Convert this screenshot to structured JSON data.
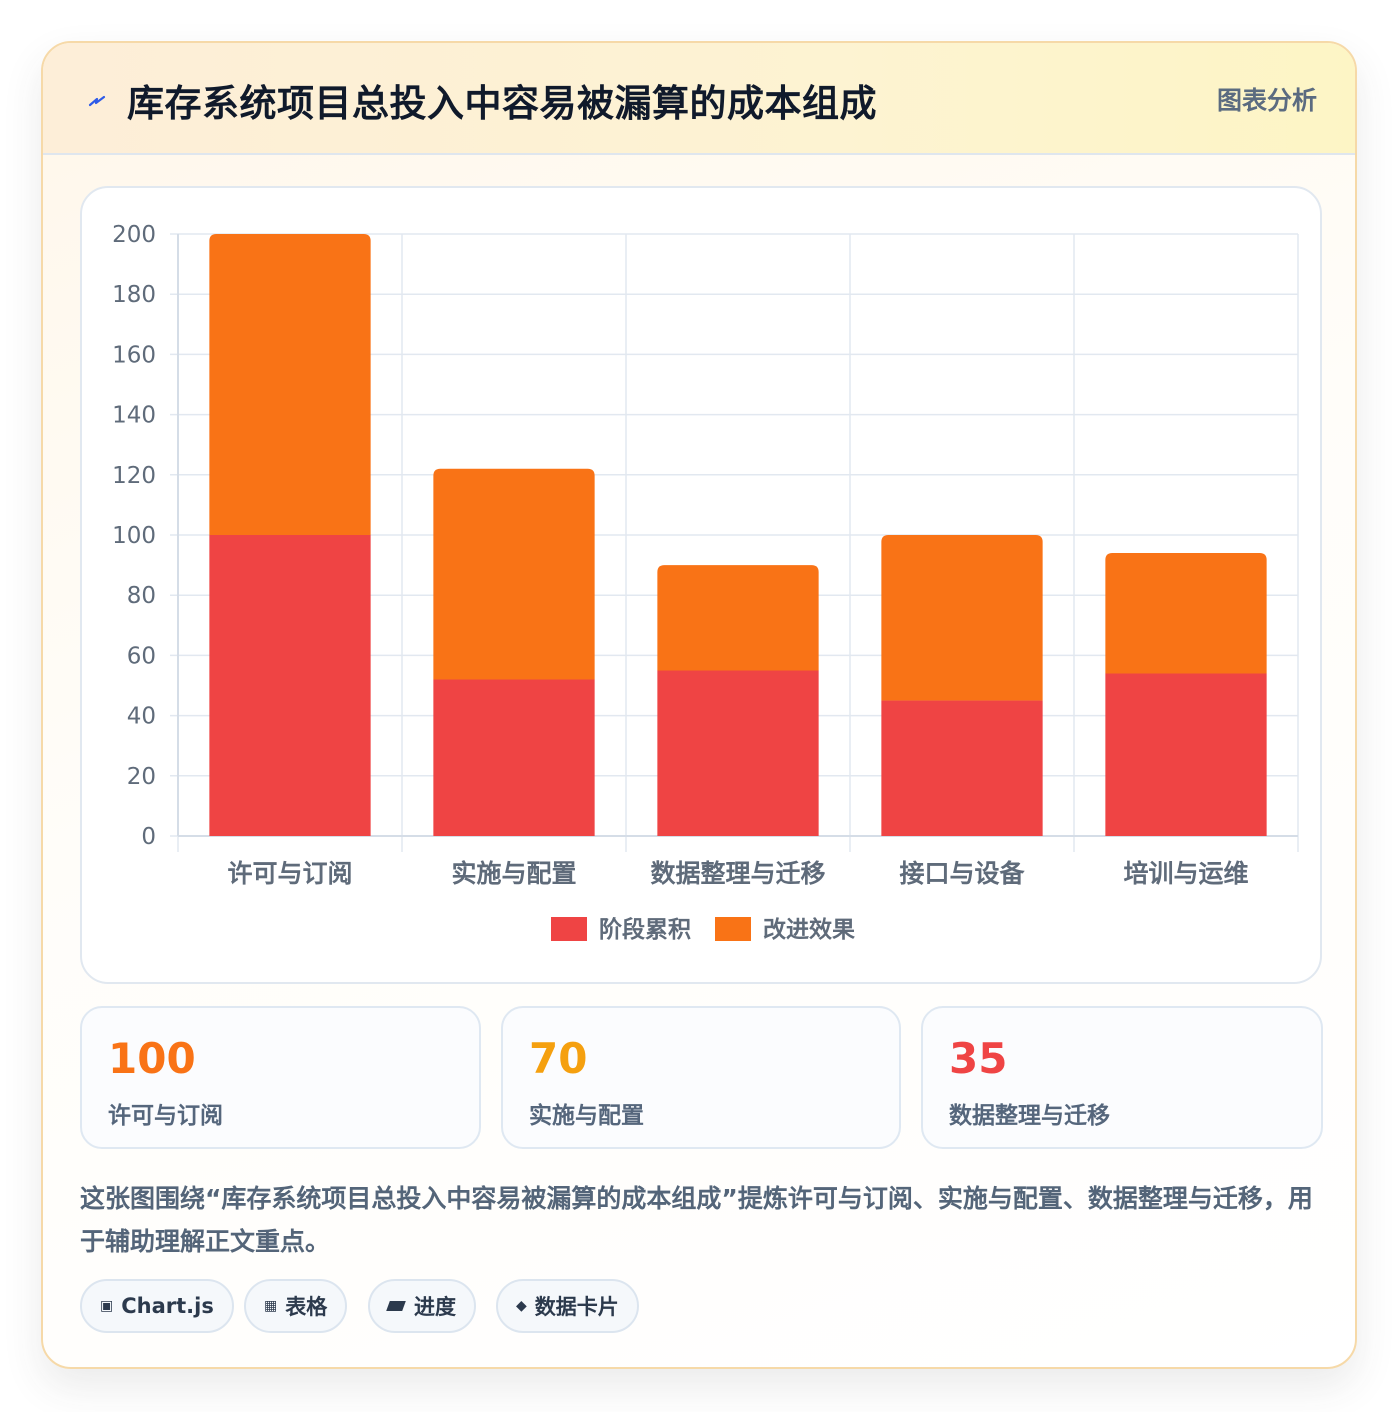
{
  "header": {
    "title": "库存系统项目总投入中容易被漏算的成本组成",
    "tag": "图表分析"
  },
  "colors": {
    "series1": "#ef4444",
    "series2": "#f97316",
    "accent_orange": "#f97316",
    "accent_amber": "#f5a00f",
    "accent_red": "#ef4444"
  },
  "chart_data": {
    "type": "bar",
    "stacked": true,
    "categories": [
      "许可与订阅",
      "实施与配置",
      "数据整理与迁移",
      "接口与设备",
      "培训与运维"
    ],
    "series": [
      {
        "name": "阶段累积",
        "values": [
          100,
          52,
          55,
          45,
          54
        ],
        "color": "#ef4444"
      },
      {
        "name": "改进效果",
        "values": [
          100,
          70,
          35,
          55,
          40
        ],
        "color": "#f97316"
      }
    ],
    "ylim": [
      0,
      200
    ],
    "yticks": [
      0,
      20,
      40,
      60,
      80,
      100,
      120,
      140,
      160,
      180,
      200
    ],
    "grid": true,
    "legend": "bottom"
  },
  "stats": [
    {
      "value": "100",
      "label": "许可与订阅",
      "color": "#f97316"
    },
    {
      "value": "70",
      "label": "实施与配置",
      "color": "#f5a00f"
    },
    {
      "value": "35",
      "label": "数据整理与迁移",
      "color": "#ef4444"
    }
  ],
  "description": "这张图围绕“库存系统项目总投入中容易被漏算的成本组成”提炼许可与订阅、实施与配置、数据整理与迁移，用于辅助理解正文重点。",
  "chips": [
    {
      "icon": "▣",
      "label": "Chart.js"
    },
    {
      "icon": "▦",
      "label": "表格"
    },
    {
      "icon": "",
      "label": "进度"
    },
    {
      "icon": "◆",
      "label": "数据卡片"
    }
  ]
}
